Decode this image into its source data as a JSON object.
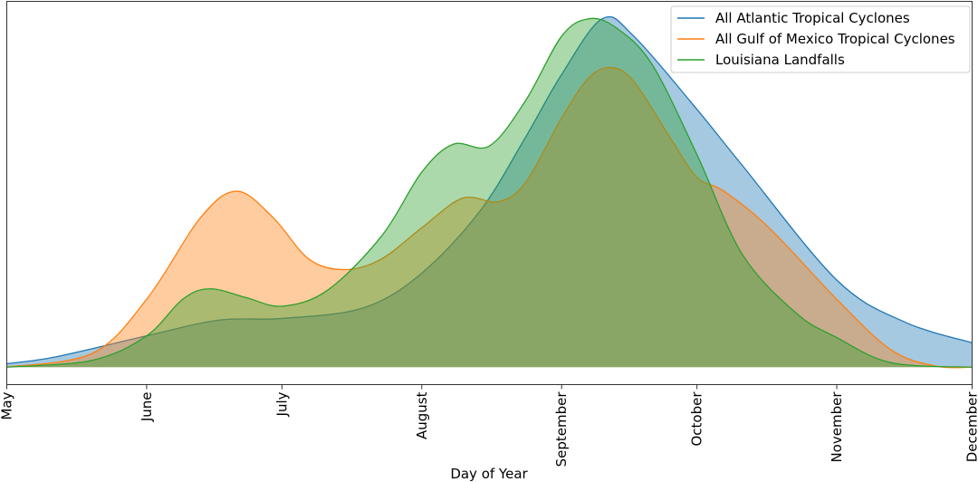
{
  "chart_data": {
    "type": "area",
    "title": "",
    "xlabel": "Day of Year",
    "ylabel": "",
    "xlim": [
      121,
      335
    ],
    "ylim": [
      -0.05,
      1.05
    ],
    "grid": false,
    "legend_placement": "top-right",
    "x_ticks": [
      {
        "value": 121,
        "label": "May"
      },
      {
        "value": 152,
        "label": "June"
      },
      {
        "value": 182,
        "label": "July"
      },
      {
        "value": 213,
        "label": "August"
      },
      {
        "value": 244,
        "label": "September"
      },
      {
        "value": 274,
        "label": "October"
      },
      {
        "value": 305,
        "label": "November"
      },
      {
        "value": 335,
        "label": "December"
      }
    ],
    "series": [
      {
        "name": "All Atlantic Tropical Cyclones",
        "color": "#1f77b4",
        "x": [
          121,
          132,
          152,
          168,
          182,
          200,
          213,
          226,
          236,
          244,
          253,
          260,
          274,
          284,
          305,
          320,
          335
        ],
        "y": [
          0.01,
          0.03,
          0.09,
          0.135,
          0.14,
          0.17,
          0.27,
          0.45,
          0.66,
          0.84,
          1.0,
          0.95,
          0.74,
          0.58,
          0.25,
          0.13,
          0.07
        ]
      },
      {
        "name": "All Gulf of Mexico Tropical Cyclones",
        "color": "#ff7f0e",
        "x": [
          121,
          140,
          152,
          164,
          172,
          180,
          188,
          196,
          204,
          213,
          222,
          230,
          236,
          244,
          250,
          255,
          260,
          268,
          274,
          280,
          290,
          305,
          317,
          327,
          335
        ],
        "y": [
          0,
          0.04,
          0.195,
          0.43,
          0.505,
          0.43,
          0.31,
          0.28,
          0.31,
          0.4,
          0.485,
          0.475,
          0.53,
          0.715,
          0.83,
          0.86,
          0.82,
          0.66,
          0.545,
          0.505,
          0.4,
          0.195,
          0.05,
          0.003,
          0
        ]
      },
      {
        "name": "Louisiana Landfalls",
        "color": "#2ca02c",
        "x": [
          121,
          140,
          152,
          160,
          166,
          174,
          182,
          192,
          204,
          213,
          220,
          228,
          236,
          244,
          250,
          256,
          264,
          274,
          284,
          296,
          305,
          317,
          335
        ],
        "y": [
          0,
          0.02,
          0.09,
          0.195,
          0.225,
          0.2,
          0.175,
          0.22,
          0.375,
          0.56,
          0.64,
          0.635,
          0.765,
          0.95,
          1.0,
          0.975,
          0.87,
          0.61,
          0.325,
          0.155,
          0.085,
          0.013,
          0
        ]
      }
    ]
  }
}
